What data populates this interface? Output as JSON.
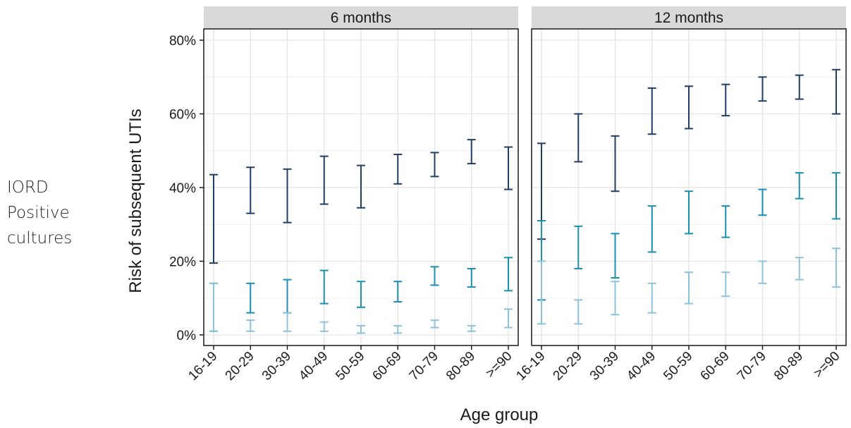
{
  "side_label": {
    "line1": "IORD",
    "line2": "Positive",
    "line3": "cultures"
  },
  "chart_data": {
    "type": "errorbar",
    "xlabel": "Age group",
    "ylabel": "Risk of subsequent UTIs",
    "ylim": [
      0,
      80
    ],
    "yticks": [
      0,
      20,
      40,
      60,
      80
    ],
    "ytick_labels": [
      "0%",
      "20%",
      "40%",
      "60%",
      "80%"
    ],
    "categories": [
      "16-19",
      "20-29",
      "30-39",
      "40-49",
      "50-59",
      "60-69",
      "70-79",
      "80-89",
      ">=90"
    ],
    "grid": true,
    "series_colors": [
      "#1f3f66",
      "#1b8fb0",
      "#8cc3dc"
    ],
    "panels": [
      {
        "title": "6 months",
        "series": [
          {
            "low": [
              19.5,
              33,
              30.5,
              35.5,
              34.5,
              41,
              43,
              46.5,
              39.5
            ],
            "high": [
              43.5,
              45.5,
              45,
              48.5,
              46,
              49,
              49.5,
              53,
              51
            ]
          },
          {
            "low": [
              1,
              6,
              6,
              8.5,
              7.5,
              9,
              13.5,
              13,
              12
            ],
            "high": [
              14,
              14,
              15,
              17.5,
              14.5,
              14.5,
              18.5,
              18,
              21
            ]
          },
          {
            "low": [
              1,
              1,
              1,
              1,
              0.5,
              0.5,
              2,
              1,
              2
            ],
            "high": [
              14,
              4,
              6,
              3.5,
              2.5,
              2.5,
              4,
              2.5,
              7
            ]
          }
        ]
      },
      {
        "title": "12 months",
        "series": [
          {
            "low": [
              26,
              47,
              39,
              54.5,
              56,
              59.5,
              63.5,
              64,
              60
            ],
            "high": [
              52,
              60,
              54,
              67,
              67.5,
              68,
              70,
              70.5,
              72
            ]
          },
          {
            "low": [
              9.5,
              18,
              15.5,
              22.5,
              27.5,
              26.5,
              32.5,
              37,
              31.5
            ],
            "high": [
              31,
              29.5,
              27.5,
              35,
              39,
              35,
              39.5,
              44,
              44
            ]
          },
          {
            "low": [
              3,
              3,
              5.5,
              6,
              8.5,
              10.5,
              14,
              15,
              13
            ],
            "high": [
              20,
              9.5,
              14.5,
              14,
              17,
              17,
              20,
              21,
              23.5
            ]
          }
        ]
      }
    ]
  }
}
